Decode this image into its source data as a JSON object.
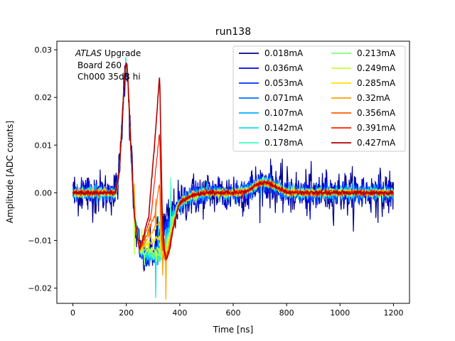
{
  "chart_data": {
    "type": "line",
    "title": "run138",
    "xlabel": "Time [ns]",
    "ylabel": "Amplitude [ADC counts]",
    "xlim": [
      -60,
      1260
    ],
    "ylim": [
      -0.0232,
      0.0318
    ],
    "xticks": [
      0,
      200,
      400,
      600,
      800,
      1000,
      1200
    ],
    "xtick_labels": [
      "0",
      "200",
      "400",
      "600",
      "800",
      "1000",
      "1200"
    ],
    "yticks": [
      -0.02,
      -0.01,
      0.0,
      0.01,
      0.02,
      0.03
    ],
    "ytick_labels": [
      "−0.02",
      "−0.01",
      "0.00",
      "0.01",
      "0.02",
      "0.03"
    ],
    "annotation": {
      "line1_italic": "ATLAS",
      "line1_rest": " Upgrade",
      "line2": "Board 260",
      "line3": "Ch000 35dB hi"
    },
    "legend": {
      "placement": "upper-right",
      "columns": 2
    },
    "grid": false,
    "series": [
      {
        "name": "0.018mA",
        "color": "#00008f",
        "noise": 0.0024
      },
      {
        "name": "0.036mA",
        "color": "#0000e0",
        "noise": 0.0014
      },
      {
        "name": "0.053mA",
        "color": "#0030ff",
        "noise": 0.0011
      },
      {
        "name": "0.071mA",
        "color": "#0070ff",
        "noise": 0.0009
      },
      {
        "name": "0.107mA",
        "color": "#00b0ff",
        "noise": 0.0007
      },
      {
        "name": "0.142mA",
        "color": "#10e0f0",
        "noise": 0.0006
      },
      {
        "name": "0.178mA",
        "color": "#40ffc0",
        "noise": 0.0005
      },
      {
        "name": "0.213mA",
        "color": "#80ff80",
        "noise": 0.0005
      },
      {
        "name": "0.249mA",
        "color": "#c0ff40",
        "noise": 0.0004
      },
      {
        "name": "0.285mA",
        "color": "#ffe000",
        "noise": 0.0004
      },
      {
        "name": "0.32mA",
        "color": "#ffa000",
        "noise": 0.0003
      },
      {
        "name": "0.356mA",
        "color": "#ff6000",
        "noise": 0.0003
      },
      {
        "name": "0.391mA",
        "color": "#ff2000",
        "noise": 0.0003
      },
      {
        "name": "0.427mA",
        "color": "#b00000",
        "noise": 0.0002
      }
    ],
    "pulse_shape": {
      "x": [
        0,
        160,
        175,
        185,
        195,
        200,
        205,
        215,
        230,
        250,
        270,
        280,
        300,
        350,
        400,
        450,
        500,
        600,
        650,
        700,
        720,
        750,
        800,
        850,
        1000,
        1200
      ],
      "y": [
        0.0,
        0.0,
        0.005,
        0.016,
        0.026,
        0.027,
        0.025,
        0.012,
        -0.005,
        -0.012,
        -0.0138,
        -0.0135,
        -0.012,
        -0.006,
        -0.002,
        -0.0005,
        0.0,
        0.0,
        0.0003,
        0.002,
        0.0022,
        0.0015,
        0.0002,
        0.0,
        0.0,
        0.0
      ]
    }
  }
}
